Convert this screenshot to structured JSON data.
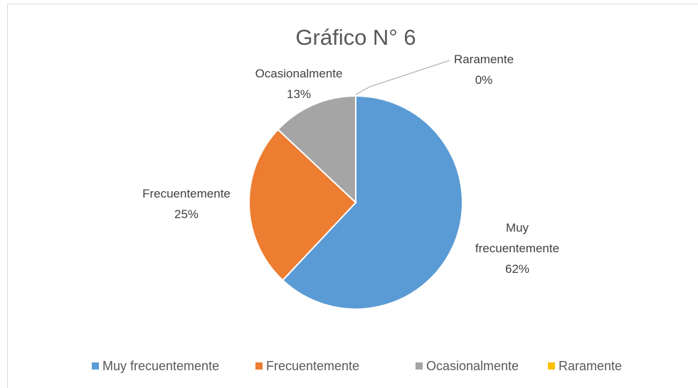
{
  "chart_data": {
    "type": "pie",
    "title": "Gráfico N° 6",
    "categories": [
      "Muy frecuentemente",
      "Frecuentemente",
      "Ocasionalmente",
      "Raramente"
    ],
    "values": [
      62,
      25,
      13,
      0
    ],
    "value_labels": [
      "62%",
      "25%",
      "13%",
      "0%"
    ],
    "colors": [
      "#5b9bd5",
      "#ed7d31",
      "#a5a5a5",
      "#ffc000"
    ],
    "legend": "bottom"
  }
}
